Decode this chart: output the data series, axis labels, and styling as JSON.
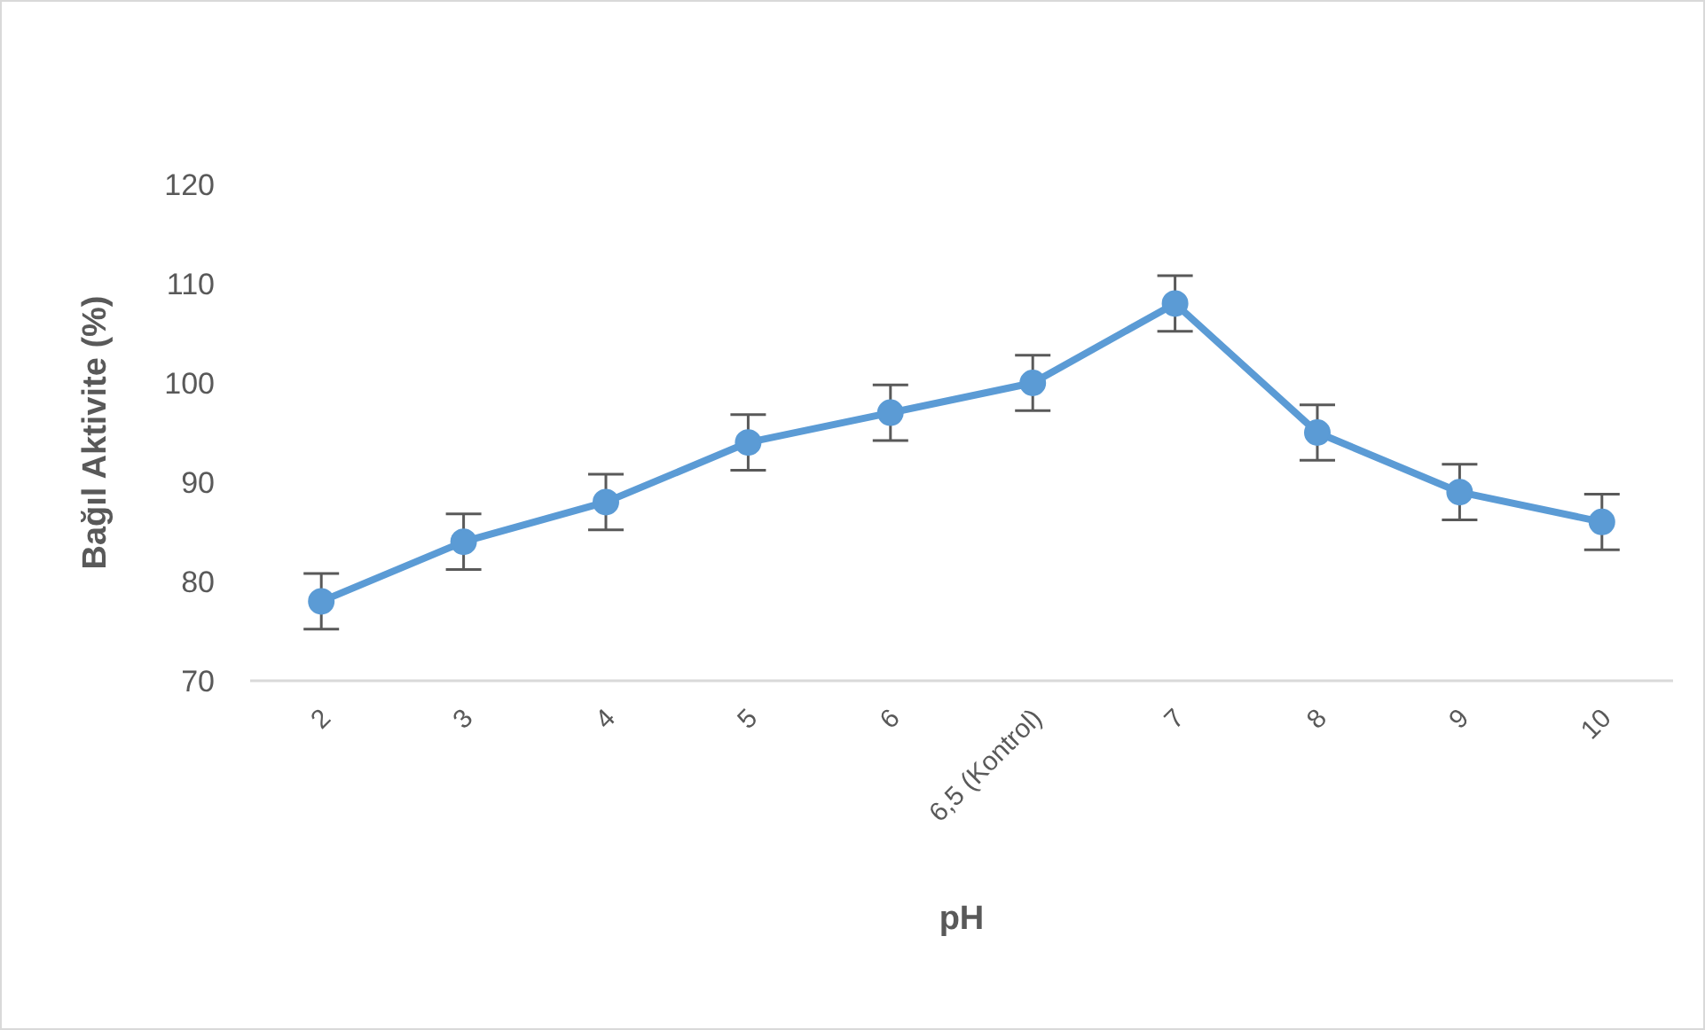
{
  "chart_data": {
    "type": "line",
    "xlabel": "pH",
    "ylabel": "Bağıl Aktivite (%)",
    "categories": [
      "2",
      "3",
      "4",
      "5",
      "6",
      "6,5 (Kontrol)",
      "7",
      "8",
      "9",
      "10"
    ],
    "series": [
      {
        "color": "#5b9bd5",
        "values": [
          78,
          84,
          88,
          94,
          97,
          100,
          108,
          95,
          89,
          86
        ],
        "errors": [
          2.8,
          2.8,
          2.8,
          2.8,
          2.8,
          2.8,
          2.8,
          2.8,
          2.8,
          2.8
        ]
      }
    ],
    "ylim": [
      70,
      120
    ],
    "yticks": [
      70,
      80,
      90,
      100,
      110,
      120
    ],
    "grid": false,
    "legend": false,
    "marker": "circle",
    "line_style": "solid"
  }
}
